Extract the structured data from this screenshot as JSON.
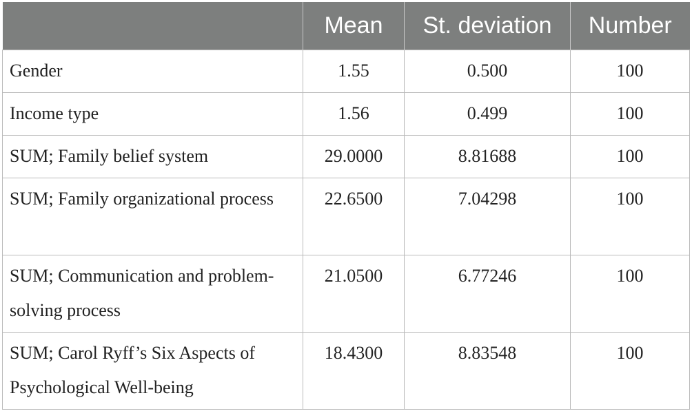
{
  "table": {
    "headers": [
      "",
      "Mean",
      "St. deviation",
      "Number"
    ],
    "rows": [
      {
        "label": "Gender",
        "mean": "1.55",
        "sd": "0.500",
        "n": "100"
      },
      {
        "label": "Income type",
        "mean": "1.56",
        "sd": "0.499",
        "n": "100"
      },
      {
        "label": "SUM; Family belief system",
        "mean": "29.0000",
        "sd": "8.81688",
        "n": "100"
      },
      {
        "label": "SUM; Family organizational process",
        "mean": "22.6500",
        "sd": "7.04298",
        "n": "100"
      },
      {
        "label": "SUM; Communication and problem-solving process",
        "mean": "21.0500",
        "sd": "6.77246",
        "n": "100"
      },
      {
        "label": "SUM; Carol Ryff’s Six Aspects of Psychological Well-being",
        "mean": "18.4300",
        "sd": "8.83548",
        "n": "100"
      }
    ]
  },
  "colors": {
    "header_bg": "#7d7f7e",
    "header_text": "#ffffff",
    "grid": "#b9b9b9"
  }
}
